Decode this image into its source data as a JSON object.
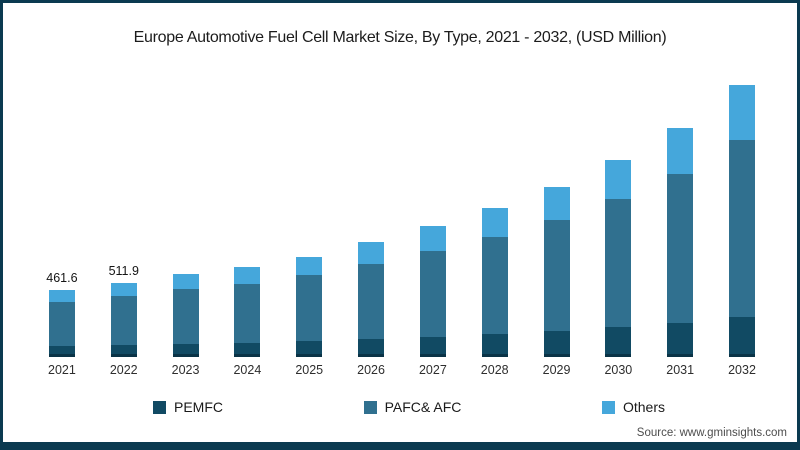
{
  "chart_data": {
    "type": "bar",
    "stacked": true,
    "title": "Europe Automotive Fuel Cell Market Size, By Type, 2021 - 2032, (USD Million)",
    "xlabel": "",
    "ylabel": "USD Million",
    "grid": false,
    "legend_position": "bottom",
    "categories": [
      "2021",
      "2022",
      "2023",
      "2024",
      "2025",
      "2026",
      "2027",
      "2028",
      "2029",
      "2030",
      "2031",
      "2032"
    ],
    "series": [
      {
        "name": "PEMFC",
        "color": "#114a63",
        "values": [
          78,
          85,
          93,
          99,
          110,
          125,
          141,
          160,
          180,
          206,
          237,
          278
        ]
      },
      {
        "name": "PAFC& AFC",
        "color": "#30708f",
        "values": [
          303,
          335,
          377,
          407,
          452,
          517,
          589,
          669,
          765,
          884,
          1026,
          1216
        ]
      },
      {
        "name": "Others",
        "color": "#45a7db",
        "values": [
          80.6,
          91.9,
          105,
          114,
          128,
          148,
          170,
          196,
          230,
          270,
          317,
          381
        ]
      }
    ],
    "totals": [
      461.6,
      511.9,
      575,
      620,
      690,
      790,
      900,
      1025,
      1175,
      1360,
      1580,
      1875
    ],
    "bar_labels": [
      "461.6",
      "511.9",
      "",
      "",
      "",
      "",
      "",
      "",
      "",
      "",
      "",
      ""
    ],
    "ylim": [
      0,
      1900
    ]
  },
  "source": {
    "label": "Source: www.gminsights.com"
  },
  "colors": {
    "frame_border": "#0b3a50",
    "pemfc": "#114a63",
    "pafc_afc": "#30708f",
    "others": "#45a7db",
    "title_text": "#1c1c1c"
  }
}
